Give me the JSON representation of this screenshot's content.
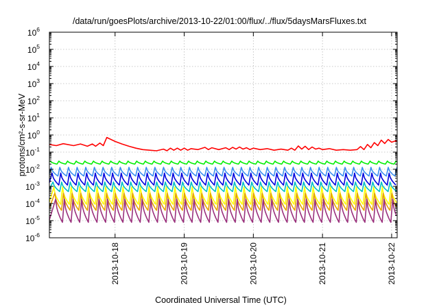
{
  "chart_data": {
    "type": "line",
    "title": "/data/run/goesPlots/archive/2013-10-22/01:00/flux/../flux/5daysMarsFluxes.txt",
    "xlabel": "Coordinated Universal Time (UTC)",
    "ylabel": "protons/cm²-s-sr-MeV",
    "yscale": "log",
    "ylim": [
      1e-06,
      1000000.0
    ],
    "xlim_days": [
      -0.95,
      4.08
    ],
    "x_tick_labels": [
      "2013-10-18",
      "2013-10-19",
      "2013-10-20",
      "2013-10-21",
      "2013-10-22"
    ],
    "x_tick_days": [
      0,
      1,
      2,
      3,
      4
    ],
    "y_tick_labels": [
      {
        "base": "10",
        "exp": "-6"
      },
      {
        "base": "10",
        "exp": "-5"
      },
      {
        "base": "10",
        "exp": "-4"
      },
      {
        "base": "10",
        "exp": "-3"
      },
      {
        "base": "10",
        "exp": "-2"
      },
      {
        "base": "10",
        "exp": "-1"
      },
      {
        "base": "10",
        "exp": "0"
      },
      {
        "base": "10",
        "exp": "1"
      },
      {
        "base": "10",
        "exp": "2"
      },
      {
        "base": "10",
        "exp": "3"
      },
      {
        "base": "10",
        "exp": "4"
      },
      {
        "base": "10",
        "exp": "5"
      },
      {
        "base": "10",
        "exp": "6"
      }
    ],
    "grid": true,
    "legend": "none",
    "series": [
      {
        "color": "#ff0000",
        "values": [
          [
            -0.95,
            0.28
          ],
          [
            -0.85,
            0.24
          ],
          [
            -0.75,
            0.31
          ],
          [
            -0.6,
            0.24
          ],
          [
            -0.5,
            0.3
          ],
          [
            -0.4,
            0.22
          ],
          [
            -0.33,
            0.3
          ],
          [
            -0.28,
            0.22
          ],
          [
            -0.22,
            0.34
          ],
          [
            -0.17,
            0.24
          ],
          [
            -0.12,
            0.72
          ],
          [
            0.0,
            0.42
          ],
          [
            0.1,
            0.3
          ],
          [
            0.2,
            0.22
          ],
          [
            0.3,
            0.17
          ],
          [
            0.4,
            0.14
          ],
          [
            0.5,
            0.13
          ],
          [
            0.6,
            0.12
          ],
          [
            0.7,
            0.15
          ],
          [
            0.75,
            0.12
          ],
          [
            0.8,
            0.17
          ],
          [
            0.85,
            0.13
          ],
          [
            0.9,
            0.17
          ],
          [
            0.95,
            0.13
          ],
          [
            1.0,
            0.17
          ],
          [
            1.05,
            0.13
          ],
          [
            1.1,
            0.16
          ],
          [
            1.2,
            0.14
          ],
          [
            1.3,
            0.19
          ],
          [
            1.35,
            0.14
          ],
          [
            1.4,
            0.18
          ],
          [
            1.5,
            0.14
          ],
          [
            1.6,
            0.18
          ],
          [
            1.65,
            0.14
          ],
          [
            1.7,
            0.19
          ],
          [
            1.75,
            0.15
          ],
          [
            1.8,
            0.2
          ],
          [
            1.85,
            0.15
          ],
          [
            1.9,
            0.18
          ],
          [
            1.95,
            0.14
          ],
          [
            2.0,
            0.17
          ],
          [
            2.1,
            0.14
          ],
          [
            2.2,
            0.16
          ],
          [
            2.3,
            0.13
          ],
          [
            2.4,
            0.15
          ],
          [
            2.5,
            0.13
          ],
          [
            2.55,
            0.17
          ],
          [
            2.6,
            0.13
          ],
          [
            2.65,
            0.23
          ],
          [
            2.7,
            0.15
          ],
          [
            2.75,
            0.22
          ],
          [
            2.8,
            0.14
          ],
          [
            2.85,
            0.2
          ],
          [
            2.9,
            0.15
          ],
          [
            2.95,
            0.17
          ],
          [
            3.0,
            0.14
          ],
          [
            3.1,
            0.16
          ],
          [
            3.2,
            0.13
          ],
          [
            3.3,
            0.14
          ],
          [
            3.4,
            0.13
          ],
          [
            3.5,
            0.14
          ],
          [
            3.55,
            0.21
          ],
          [
            3.6,
            0.14
          ],
          [
            3.65,
            0.28
          ],
          [
            3.7,
            0.18
          ],
          [
            3.75,
            0.36
          ],
          [
            3.8,
            0.24
          ],
          [
            3.85,
            0.5
          ],
          [
            3.9,
            0.32
          ],
          [
            3.95,
            0.55
          ],
          [
            4.0,
            0.38
          ],
          [
            4.05,
            0.45
          ],
          [
            4.08,
            0.42
          ]
        ]
      },
      {
        "color": "#00ee00",
        "type": "sawtooth",
        "floor": 0.02,
        "peak": 0.03
      },
      {
        "color": "#3a8ef0",
        "type": "sawtooth",
        "floor": 0.004,
        "peak": 0.013
      },
      {
        "color": "#0000dd",
        "type": "sawtooth",
        "floor": 0.0012,
        "peak": 0.006
      },
      {
        "color": "#00c0c0",
        "type": "sawtooth",
        "floor": 0.0005,
        "peak": 0.0018
      },
      {
        "color": "#ffff00",
        "type": "sawtooth",
        "floor": 9e-05,
        "peak": 0.0009
      },
      {
        "color": "#e6a000",
        "type": "sawtooth",
        "floor": 4e-05,
        "peak": 0.0004
      },
      {
        "color": "#9a2f7c",
        "type": "sawtooth",
        "floor": 8e-06,
        "peak": 0.00018
      }
    ],
    "sawtooth_period_days": 0.125
  }
}
